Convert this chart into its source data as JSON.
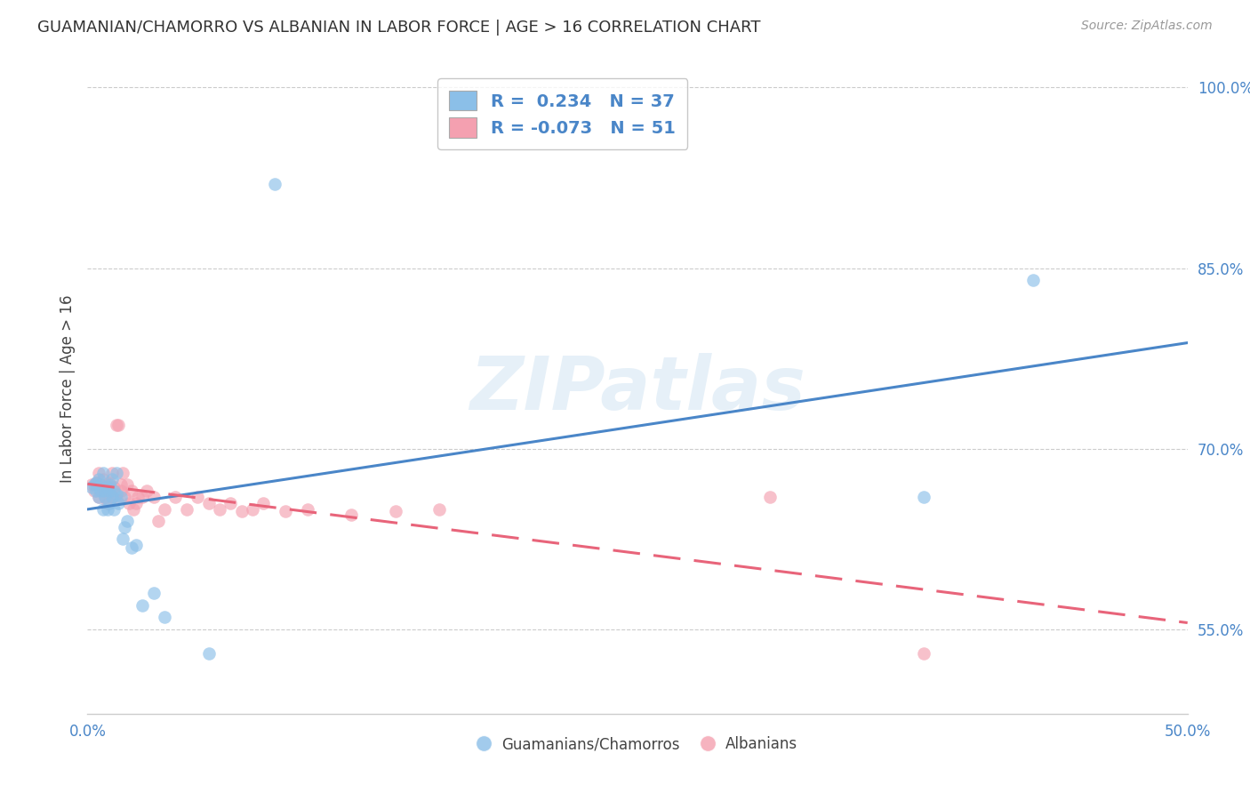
{
  "title": "GUAMANIAN/CHAMORRO VS ALBANIAN IN LABOR FORCE | AGE > 16 CORRELATION CHART",
  "source": "Source: ZipAtlas.com",
  "ylabel": "In Labor Force | Age > 16",
  "xlim": [
    0.0,
    0.5
  ],
  "ylim": [
    0.48,
    1.02
  ],
  "yticks": [
    0.55,
    0.7,
    0.85,
    1.0
  ],
  "ytick_labels": [
    "55.0%",
    "70.0%",
    "85.0%",
    "100.0%"
  ],
  "xticks": [
    0.0,
    0.1,
    0.2,
    0.3,
    0.4,
    0.5
  ],
  "xtick_labels": [
    "0.0%",
    "",
    "",
    "",
    "",
    "50.0%"
  ],
  "legend1_R": "0.234",
  "legend1_N": "37",
  "legend2_R": "-0.073",
  "legend2_N": "51",
  "blue_color": "#8bbfe8",
  "pink_color": "#f4a0b0",
  "blue_line_color": "#4a86c8",
  "pink_line_color": "#e8647a",
  "watermark": "ZIPatlas",
  "guamanian_x": [
    0.002,
    0.003,
    0.004,
    0.004,
    0.005,
    0.005,
    0.006,
    0.006,
    0.007,
    0.007,
    0.008,
    0.008,
    0.009,
    0.009,
    0.01,
    0.01,
    0.01,
    0.011,
    0.011,
    0.012,
    0.012,
    0.013,
    0.013,
    0.014,
    0.015,
    0.016,
    0.017,
    0.018,
    0.02,
    0.022,
    0.025,
    0.03,
    0.035,
    0.055,
    0.085,
    0.38,
    0.43
  ],
  "guamanian_y": [
    0.668,
    0.67,
    0.665,
    0.672,
    0.66,
    0.675,
    0.665,
    0.67,
    0.65,
    0.68,
    0.66,
    0.665,
    0.65,
    0.668,
    0.655,
    0.665,
    0.67,
    0.66,
    0.675,
    0.665,
    0.65,
    0.662,
    0.68,
    0.655,
    0.66,
    0.625,
    0.635,
    0.64,
    0.618,
    0.62,
    0.57,
    0.58,
    0.56,
    0.53,
    0.92,
    0.66,
    0.84
  ],
  "albanian_x": [
    0.002,
    0.003,
    0.004,
    0.005,
    0.005,
    0.006,
    0.007,
    0.007,
    0.008,
    0.008,
    0.009,
    0.009,
    0.01,
    0.01,
    0.011,
    0.011,
    0.012,
    0.013,
    0.013,
    0.014,
    0.015,
    0.015,
    0.016,
    0.017,
    0.018,
    0.019,
    0.02,
    0.021,
    0.022,
    0.023,
    0.025,
    0.027,
    0.03,
    0.032,
    0.035,
    0.04,
    0.045,
    0.05,
    0.055,
    0.06,
    0.065,
    0.07,
    0.075,
    0.08,
    0.09,
    0.1,
    0.12,
    0.14,
    0.16,
    0.31,
    0.38
  ],
  "albanian_y": [
    0.67,
    0.665,
    0.672,
    0.66,
    0.68,
    0.67,
    0.665,
    0.675,
    0.66,
    0.668,
    0.67,
    0.655,
    0.665,
    0.672,
    0.66,
    0.68,
    0.668,
    0.658,
    0.72,
    0.72,
    0.67,
    0.665,
    0.68,
    0.66,
    0.67,
    0.655,
    0.665,
    0.65,
    0.655,
    0.66,
    0.66,
    0.665,
    0.66,
    0.64,
    0.65,
    0.66,
    0.65,
    0.66,
    0.655,
    0.65,
    0.655,
    0.648,
    0.65,
    0.655,
    0.648,
    0.65,
    0.645,
    0.648,
    0.65,
    0.66,
    0.53
  ]
}
